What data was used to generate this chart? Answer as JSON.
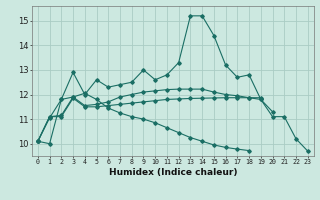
{
  "xlabel": "Humidex (Indice chaleur)",
  "background_color": "#cce8e0",
  "grid_color": "#aaccc4",
  "line_color": "#1a6e64",
  "x_values": [
    0,
    1,
    2,
    3,
    4,
    5,
    6,
    7,
    8,
    9,
    10,
    11,
    12,
    13,
    14,
    15,
    16,
    17,
    18,
    19,
    20,
    21,
    22,
    23
  ],
  "ylim": [
    9.5,
    15.6
  ],
  "xlim": [
    -0.5,
    23.5
  ],
  "yticks": [
    10,
    11,
    12,
    13,
    14,
    15
  ],
  "line1": [
    10.1,
    10.0,
    11.8,
    12.9,
    12.0,
    12.6,
    12.3,
    12.4,
    12.5,
    13.0,
    12.6,
    12.8,
    13.3,
    15.2,
    15.2,
    14.4,
    13.2,
    12.7,
    12.8,
    11.8,
    11.1,
    11.1,
    10.2,
    9.7
  ],
  "line2": [
    10.1,
    11.1,
    11.1,
    11.85,
    11.5,
    11.5,
    11.55,
    11.6,
    11.65,
    11.7,
    11.75,
    11.8,
    11.82,
    11.84,
    11.85,
    11.86,
    11.87,
    11.87,
    11.87,
    11.8,
    11.3,
    null,
    null,
    null
  ],
  "line3": [
    10.1,
    11.1,
    11.15,
    11.9,
    11.55,
    11.6,
    11.7,
    11.9,
    12.0,
    12.1,
    12.15,
    12.2,
    12.22,
    12.22,
    12.22,
    12.1,
    12.0,
    11.95,
    11.87,
    11.87,
    null,
    null,
    null,
    null
  ],
  "line4": [
    10.1,
    11.05,
    11.8,
    11.9,
    12.05,
    11.8,
    11.45,
    11.25,
    11.1,
    11.0,
    10.85,
    10.65,
    10.45,
    10.25,
    10.1,
    9.95,
    9.85,
    9.78,
    9.72,
    null,
    null,
    null,
    null,
    null
  ]
}
